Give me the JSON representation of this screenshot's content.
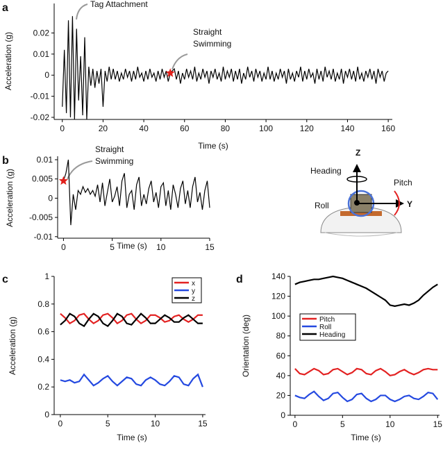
{
  "chart_data": [
    {
      "type": "line",
      "panel_label": "a",
      "xlabel": "Time (s)",
      "ylabel": "Acceleration (g)",
      "xlim": [
        -4,
        162
      ],
      "ylim": [
        -0.021,
        0.034
      ],
      "xticks": [
        0,
        20,
        40,
        60,
        80,
        100,
        120,
        140,
        160
      ],
      "yticks": [
        -0.02,
        -0.01,
        0,
        0.01,
        0.02
      ],
      "x": [
        0,
        1,
        2,
        3,
        4,
        5,
        6,
        7,
        8,
        9,
        10,
        11,
        12,
        13,
        14,
        15,
        16,
        17,
        18,
        19,
        20,
        21,
        22,
        23,
        24,
        25,
        26,
        27,
        28,
        29,
        30,
        31,
        32,
        33,
        34,
        35,
        36,
        37,
        38,
        39,
        40,
        41,
        42,
        43,
        44,
        45,
        46,
        47,
        48,
        49,
        50,
        51,
        52,
        53,
        54,
        55,
        56,
        57,
        58,
        59,
        60,
        61,
        62,
        63,
        64,
        65,
        66,
        67,
        68,
        69,
        70,
        71,
        72,
        73,
        74,
        75,
        76,
        77,
        78,
        79,
        80,
        81,
        82,
        83,
        84,
        85,
        86,
        87,
        88,
        89,
        90,
        91,
        92,
        93,
        94,
        95,
        96,
        97,
        98,
        99,
        100,
        101,
        102,
        103,
        104,
        105,
        106,
        107,
        108,
        109,
        110,
        111,
        112,
        113,
        114,
        115,
        116,
        117,
        118,
        119,
        120,
        121,
        122,
        123,
        124,
        125,
        126,
        127,
        128,
        129,
        130,
        131,
        132,
        133,
        134,
        135,
        136,
        137,
        138,
        139,
        140,
        141,
        142,
        143,
        144,
        145,
        146,
        147,
        148,
        149,
        150,
        151,
        152,
        153,
        154,
        155,
        156,
        157,
        158,
        159,
        160
      ],
      "series": [
        {
          "color": "#000000",
          "values": [
            -0.015,
            0.012,
            -0.018,
            0.026,
            -0.02,
            0.028,
            -0.021,
            0.022,
            -0.012,
            0.009,
            -0.019,
            0.018,
            -0.021,
            0.004,
            -0.005,
            0.003,
            -0.006,
            0.002,
            -0.004,
            0.003,
            -0.015,
            0.002,
            -0.003,
            0.004,
            -0.002,
            0.003,
            -0.002,
            0.002,
            -0.003,
            0.001,
            -0.002,
            0.003,
            -0.001,
            0.002,
            -0.003,
            0.002,
            -0.002,
            0.004,
            -0.001,
            0.001,
            -0.003,
            0.002,
            -0.002,
            0.003,
            -0.001,
            0.001,
            -0.003,
            0.002,
            -0.002,
            0.003,
            -0.001,
            0.002,
            -0.003,
            0.001,
            0.002,
            0.003,
            -0.002,
            0.002,
            -0.004,
            0.001,
            -0.002,
            0.003,
            -0.001,
            0.002,
            -0.002,
            0.004,
            -0.003,
            0.001,
            -0.002,
            0.003,
            -0.001,
            0.002,
            -0.004,
            0.002,
            -0.001,
            0.003,
            -0.002,
            0.001,
            -0.003,
            0.004,
            -0.002,
            0.002,
            -0.001,
            0.003,
            -0.003,
            0.002,
            -0.002,
            0.003,
            -0.004,
            0.001,
            -0.002,
            0.004,
            -0.001,
            0.002,
            -0.003,
            0.003,
            -0.001,
            0.002,
            -0.003,
            0.001,
            -0.002,
            0.004,
            -0.002,
            0.002,
            -0.003,
            0.001,
            -0.002,
            0.003,
            -0.001,
            0.002,
            -0.004,
            0.003,
            -0.002,
            0.001,
            -0.003,
            0.002,
            -0.001,
            0.004,
            -0.003,
            0.002,
            -0.002,
            0.003,
            -0.001,
            0.001,
            -0.004,
            0.003,
            -0.002,
            0.002,
            -0.003,
            0.004,
            -0.001,
            0.002,
            -0.002,
            0.003,
            -0.003,
            0.001,
            -0.002,
            0.003,
            -0.004,
            0.002,
            -0.001,
            0.003,
            -0.002,
            0.002,
            -0.003,
            0.004,
            -0.002,
            0.001,
            -0.003,
            0.002,
            -0.001,
            0.003,
            -0.002,
            0.002,
            -0.004,
            0.003,
            -0.001,
            0.002,
            -0.003,
            0.001,
            0.002
          ]
        }
      ],
      "markers": [
        {
          "x": 53,
          "y": 0.001,
          "color": "#e0201b"
        }
      ],
      "annotations": [
        {
          "lines": [
            "Tag Attachment"
          ]
        },
        {
          "lines": [
            "Straight",
            "Swimming"
          ]
        }
      ]
    },
    {
      "type": "line",
      "panel_label": "b",
      "xlabel": "Time (s)",
      "ylabel": "Acceleration (g)",
      "xlim": [
        -0.6,
        15
      ],
      "ylim": [
        -0.0104,
        0.0109
      ],
      "xticks": [
        0,
        5,
        10,
        15
      ],
      "yticks": [
        -0.01,
        -0.005,
        0,
        0.005,
        0.01
      ],
      "x": [
        0,
        0.25,
        0.5,
        0.75,
        1,
        1.25,
        1.5,
        1.75,
        2,
        2.25,
        2.5,
        2.75,
        3,
        3.25,
        3.5,
        3.75,
        4,
        4.25,
        4.5,
        4.75,
        5,
        5.25,
        5.5,
        5.75,
        6,
        6.25,
        6.5,
        6.75,
        7,
        7.25,
        7.5,
        7.75,
        8,
        8.25,
        8.5,
        8.75,
        9,
        9.25,
        9.5,
        9.75,
        10,
        10.25,
        10.5,
        10.75,
        11,
        11.25,
        11.5,
        11.75,
        12,
        12.25,
        12.5,
        12.75,
        13,
        13.25,
        13.5,
        13.75,
        14,
        14.25,
        14.5,
        14.75,
        15
      ],
      "series": [
        {
          "color": "#000000",
          "values": [
            0.0045,
            0.0065,
            0.01,
            -0.007,
            0.001,
            -0.003,
            0.002,
            0.001,
            0.003,
            0.0015,
            0.0025,
            0.001,
            0.002,
            0.0005,
            0.0035,
            -0.001,
            0.004,
            -0.002,
            0.0015,
            0.005,
            -0.001,
            0.0005,
            0.003,
            -0.002,
            0.0045,
            0.0065,
            -0.0025,
            0.001,
            0.002,
            -0.003,
            0.0035,
            0.0055,
            -0.002,
            0.001,
            -0.0015,
            0.0025,
            0.0045,
            -0.001,
            0.0015,
            -0.0025,
            0.003,
            0.004,
            -0.002,
            0.002,
            -0.003,
            0.0035,
            0.001,
            -0.0025,
            0.0025,
            0.0045,
            -0.0015,
            0.002,
            -0.0025,
            0.003,
            0.0055,
            -0.001,
            0.0015,
            -0.003,
            0.002,
            0.0045,
            -0.0025
          ]
        }
      ],
      "markers": [
        {
          "x": 0,
          "y": 0.0045,
          "color": "#e0201b"
        }
      ],
      "annotations": [
        {
          "lines": [
            "Straight",
            "Swimming"
          ]
        }
      ]
    },
    {
      "type": "line",
      "panel_label": "c",
      "xlabel": "Time (s)",
      "ylabel": "Acceleration (g)",
      "xlim": [
        -0.65,
        15.3
      ],
      "ylim": [
        0,
        1
      ],
      "xticks": [
        0,
        5,
        10,
        15
      ],
      "yticks": [
        0,
        0.2,
        0.4,
        0.6,
        0.8,
        1
      ],
      "legend": "upper right",
      "x": [
        0,
        0.5,
        1,
        1.5,
        2,
        2.5,
        3,
        3.5,
        4,
        4.5,
        5,
        5.5,
        6,
        6.5,
        7,
        7.5,
        8,
        8.5,
        9,
        9.5,
        10,
        10.5,
        11,
        11.5,
        12,
        12.5,
        13,
        13.5,
        14,
        14.5,
        15
      ],
      "series": [
        {
          "name": "x",
          "color": "#e32222",
          "values": [
            0.73,
            0.7,
            0.66,
            0.68,
            0.72,
            0.73,
            0.69,
            0.66,
            0.68,
            0.72,
            0.73,
            0.7,
            0.66,
            0.68,
            0.72,
            0.73,
            0.69,
            0.66,
            0.68,
            0.72,
            0.72,
            0.7,
            0.67,
            0.68,
            0.71,
            0.72,
            0.69,
            0.67,
            0.69,
            0.72,
            0.72
          ]
        },
        {
          "name": "y",
          "color": "#2449e0",
          "values": [
            0.25,
            0.24,
            0.25,
            0.23,
            0.24,
            0.29,
            0.25,
            0.21,
            0.23,
            0.26,
            0.28,
            0.24,
            0.21,
            0.24,
            0.27,
            0.26,
            0.22,
            0.21,
            0.25,
            0.27,
            0.25,
            0.22,
            0.21,
            0.24,
            0.28,
            0.27,
            0.22,
            0.21,
            0.26,
            0.29,
            0.2
          ]
        },
        {
          "name": "z",
          "color": "#000000",
          "values": [
            0.65,
            0.68,
            0.73,
            0.71,
            0.66,
            0.64,
            0.69,
            0.73,
            0.71,
            0.66,
            0.64,
            0.68,
            0.73,
            0.71,
            0.66,
            0.65,
            0.69,
            0.73,
            0.7,
            0.66,
            0.66,
            0.69,
            0.72,
            0.7,
            0.67,
            0.67,
            0.7,
            0.72,
            0.69,
            0.66,
            0.66
          ]
        }
      ]
    },
    {
      "type": "line",
      "panel_label": "d",
      "xlabel": "Time (s)",
      "ylabel": "Orientation (deg)",
      "xlim": [
        -0.5,
        15.2
      ],
      "ylim": [
        0,
        140
      ],
      "xticks": [
        0,
        5,
        10,
        15
      ],
      "yticks": [
        0,
        20,
        40,
        60,
        80,
        100,
        120,
        140
      ],
      "legend": "center left",
      "x": [
        0,
        0.5,
        1,
        1.5,
        2,
        2.5,
        3,
        3.5,
        4,
        4.5,
        5,
        5.5,
        6,
        6.5,
        7,
        7.5,
        8,
        8.5,
        9,
        9.5,
        10,
        10.5,
        11,
        11.5,
        12,
        12.5,
        13,
        13.5,
        14,
        14.5,
        15
      ],
      "series": [
        {
          "name": "Pitch",
          "color": "#e32222",
          "values": [
            47,
            42,
            41,
            44,
            47,
            45,
            41,
            42,
            46,
            47,
            44,
            41,
            43,
            47,
            46,
            42,
            41,
            45,
            47,
            44,
            40,
            41,
            44,
            46,
            43,
            41,
            43,
            46,
            47,
            46,
            46
          ]
        },
        {
          "name": "Roll",
          "color": "#2449e0",
          "values": [
            20,
            18,
            17,
            21,
            24,
            19,
            15,
            17,
            22,
            23,
            18,
            14,
            16,
            21,
            22,
            17,
            14,
            16,
            20,
            20,
            16,
            14,
            16,
            19,
            20,
            17,
            16,
            19,
            23,
            22,
            16
          ]
        },
        {
          "name": "Heading",
          "color": "#000000",
          "values": [
            132,
            134,
            135,
            136,
            137,
            137,
            138,
            139,
            140,
            139,
            138,
            136,
            134,
            132,
            130,
            128,
            125,
            122,
            119,
            116,
            111,
            110,
            111,
            112,
            111,
            113,
            116,
            121,
            125,
            129,
            132
          ]
        }
      ]
    }
  ],
  "diagram": {
    "labels": {
      "z": "Z",
      "y": "Y",
      "heading": "Heading",
      "pitch": "Pitch",
      "roll": "Roll"
    }
  }
}
